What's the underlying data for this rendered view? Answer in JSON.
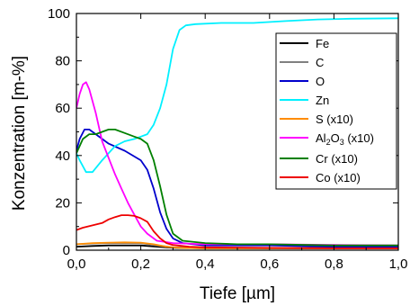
{
  "chart_data": {
    "type": "line",
    "xlabel": "Tiefe [µm]",
    "ylabel": "Konzentration [m-%]",
    "xlim": [
      0,
      1.0
    ],
    "ylim": [
      0,
      100
    ],
    "x_ticks": [
      "0,0",
      "0,2",
      "0,4",
      "0,6",
      "0,8",
      "1,0"
    ],
    "y_ticks": [
      "0",
      "20",
      "40",
      "60",
      "80",
      "100"
    ],
    "grid": false,
    "legend_position": "top-right",
    "legend": {
      "fe": "Fe",
      "c": "C",
      "o": "O",
      "zn": "Zn",
      "s": "S (x10)",
      "al_base": "Al",
      "al_sub2": "2",
      "al_mid": "O",
      "al_sub3": "3",
      "al_tail": " (x10)",
      "cr": "Cr (x10)",
      "co": "Co (x10)"
    },
    "series": [
      {
        "name": "Fe",
        "color": "#000000",
        "points": [
          [
            0,
            1.5
          ],
          [
            0.05,
            1.8
          ],
          [
            0.1,
            2.0
          ],
          [
            0.2,
            2.0
          ],
          [
            0.25,
            1.5
          ],
          [
            0.3,
            1.0
          ],
          [
            0.4,
            0.8
          ],
          [
            0.6,
            0.8
          ],
          [
            0.8,
            0.8
          ],
          [
            1.0,
            0.8
          ]
        ]
      },
      {
        "name": "C",
        "color": "#808080",
        "points": [
          [
            0,
            2.5
          ],
          [
            0.05,
            2.8
          ],
          [
            0.1,
            3.0
          ],
          [
            0.2,
            3.0
          ],
          [
            0.25,
            2.0
          ],
          [
            0.3,
            1.2
          ],
          [
            0.4,
            1.0
          ],
          [
            0.6,
            1.0
          ],
          [
            1.0,
            1.0
          ]
        ]
      },
      {
        "name": "O",
        "color": "#0000cc",
        "points": [
          [
            0,
            42
          ],
          [
            0.01,
            47
          ],
          [
            0.025,
            51
          ],
          [
            0.04,
            51
          ],
          [
            0.06,
            49
          ],
          [
            0.1,
            45
          ],
          [
            0.15,
            42
          ],
          [
            0.2,
            38
          ],
          [
            0.22,
            34
          ],
          [
            0.24,
            26
          ],
          [
            0.26,
            16
          ],
          [
            0.28,
            9
          ],
          [
            0.3,
            5
          ],
          [
            0.33,
            3
          ],
          [
            0.4,
            2
          ],
          [
            0.5,
            2
          ],
          [
            0.6,
            2
          ],
          [
            0.8,
            1.5
          ],
          [
            1.0,
            1.5
          ]
        ]
      },
      {
        "name": "Zn",
        "color": "#00f0ff",
        "points": [
          [
            0,
            41
          ],
          [
            0.01,
            38
          ],
          [
            0.03,
            33
          ],
          [
            0.05,
            33
          ],
          [
            0.08,
            38
          ],
          [
            0.12,
            44
          ],
          [
            0.15,
            46
          ],
          [
            0.18,
            47
          ],
          [
            0.2,
            48
          ],
          [
            0.22,
            49
          ],
          [
            0.24,
            53
          ],
          [
            0.26,
            60
          ],
          [
            0.28,
            70
          ],
          [
            0.3,
            85
          ],
          [
            0.32,
            93
          ],
          [
            0.34,
            95
          ],
          [
            0.37,
            95.5
          ],
          [
            0.45,
            96
          ],
          [
            0.55,
            96
          ],
          [
            0.65,
            96.8
          ],
          [
            0.75,
            97.5
          ],
          [
            0.85,
            97.8
          ],
          [
            1.0,
            98
          ]
        ]
      },
      {
        "name": "S (x10)",
        "color": "#ff8c00",
        "points": [
          [
            0,
            2.5
          ],
          [
            0.05,
            3.0
          ],
          [
            0.1,
            3.2
          ],
          [
            0.15,
            3.3
          ],
          [
            0.2,
            3.2
          ],
          [
            0.24,
            2.5
          ],
          [
            0.28,
            1.5
          ],
          [
            0.32,
            1.0
          ],
          [
            0.4,
            0.8
          ],
          [
            0.6,
            0.8
          ],
          [
            1.0,
            0.8
          ]
        ]
      },
      {
        "name": "Al2O3 (x10)",
        "color": "#ff00ff",
        "points": [
          [
            0,
            60
          ],
          [
            0.01,
            66
          ],
          [
            0.02,
            70
          ],
          [
            0.03,
            71
          ],
          [
            0.04,
            68
          ],
          [
            0.06,
            58
          ],
          [
            0.08,
            46
          ],
          [
            0.1,
            39
          ],
          [
            0.12,
            32
          ],
          [
            0.14,
            26
          ],
          [
            0.16,
            20
          ],
          [
            0.18,
            15
          ],
          [
            0.2,
            10
          ],
          [
            0.22,
            7
          ],
          [
            0.25,
            4
          ],
          [
            0.3,
            3
          ],
          [
            0.4,
            2.5
          ],
          [
            0.5,
            2.5
          ],
          [
            0.6,
            2.5
          ],
          [
            0.8,
            2.2
          ],
          [
            1.0,
            2
          ]
        ]
      },
      {
        "name": "Cr (x10)",
        "color": "#008000",
        "points": [
          [
            0,
            41
          ],
          [
            0.02,
            47
          ],
          [
            0.04,
            49
          ],
          [
            0.06,
            49
          ],
          [
            0.08,
            50
          ],
          [
            0.1,
            51
          ],
          [
            0.12,
            51
          ],
          [
            0.15,
            49.5
          ],
          [
            0.18,
            48
          ],
          [
            0.2,
            47
          ],
          [
            0.22,
            45
          ],
          [
            0.24,
            38
          ],
          [
            0.26,
            27
          ],
          [
            0.28,
            15
          ],
          [
            0.3,
            7
          ],
          [
            0.33,
            4
          ],
          [
            0.4,
            3
          ],
          [
            0.5,
            2.5
          ],
          [
            0.6,
            2.5
          ],
          [
            0.8,
            2.0
          ],
          [
            1.0,
            2
          ]
        ]
      },
      {
        "name": "Co (x10)",
        "color": "#ee0000",
        "points": [
          [
            0,
            8.5
          ],
          [
            0.02,
            9.5
          ],
          [
            0.05,
            10.5
          ],
          [
            0.08,
            11.5
          ],
          [
            0.1,
            13
          ],
          [
            0.12,
            14
          ],
          [
            0.14,
            14.8
          ],
          [
            0.16,
            14.8
          ],
          [
            0.18,
            14.5
          ],
          [
            0.2,
            13.5
          ],
          [
            0.22,
            12
          ],
          [
            0.24,
            8
          ],
          [
            0.26,
            5
          ],
          [
            0.28,
            3
          ],
          [
            0.3,
            2.2
          ],
          [
            0.35,
            1.5
          ],
          [
            0.4,
            1.2
          ],
          [
            0.6,
            1
          ],
          [
            0.8,
            0.8
          ],
          [
            1.0,
            0.8
          ]
        ]
      }
    ]
  }
}
